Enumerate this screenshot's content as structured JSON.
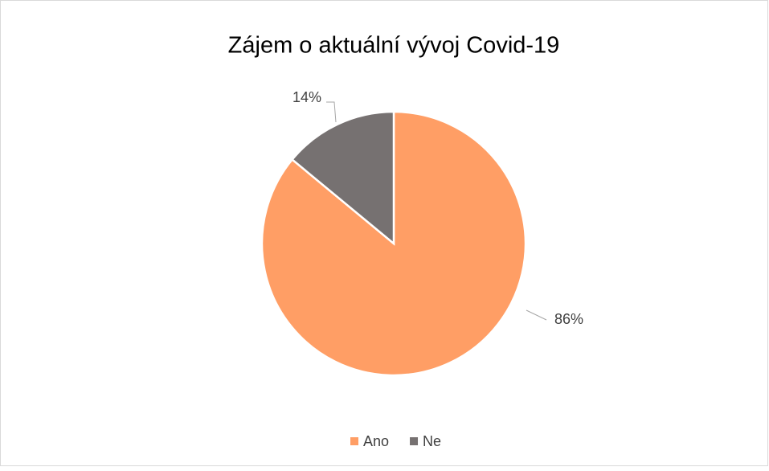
{
  "chart_data": {
    "type": "pie",
    "title": "Zájem o aktuální vývoj Covid-19",
    "categories": [
      "Ano",
      "Ne"
    ],
    "values": [
      86,
      14
    ],
    "value_labels": [
      "86%",
      "14%"
    ],
    "colors": [
      "#FF9E65",
      "#767171"
    ],
    "legend": "bottom"
  }
}
